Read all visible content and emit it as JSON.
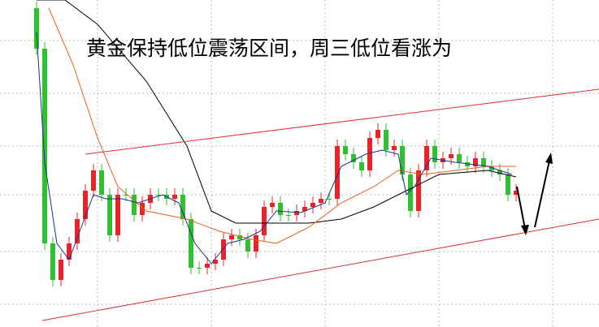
{
  "chart_data": {
    "type": "candlestick",
    "title": "黄金保持低位震荡区间，周三低位看涨为",
    "ylim": [
      0,
      403
    ],
    "up_color": "#e8242a",
    "down_color": "#2fbf2f",
    "open": [
      393,
      343,
      103,
      58,
      83,
      103,
      133,
      168,
      193,
      163,
      113,
      163,
      163,
      138,
      153,
      163,
      163,
      158,
      163,
      133,
      73,
      73,
      78,
      83,
      108,
      113,
      108,
      93,
      113,
      148,
      153,
      138,
      138,
      143,
      148,
      153,
      158,
      158,
      223,
      213,
      203,
      193,
      233,
      243,
      218,
      223,
      188,
      143,
      193,
      223,
      203,
      208,
      213,
      203,
      198,
      208,
      198,
      193,
      188,
      163
    ],
    "high": [
      401,
      351,
      111,
      91,
      111,
      141,
      176,
      201,
      201,
      171,
      171,
      171,
      171,
      161,
      171,
      171,
      171,
      171,
      171,
      141,
      81,
      86,
      91,
      116,
      121,
      121,
      116,
      121,
      156,
      161,
      161,
      146,
      151,
      156,
      161,
      166,
      166,
      231,
      231,
      221,
      211,
      241,
      251,
      251,
      231,
      231,
      196,
      201,
      231,
      231,
      216,
      221,
      221,
      211,
      216,
      216,
      206,
      201,
      196,
      176
    ],
    "low": [
      335,
      95,
      50,
      50,
      75,
      95,
      125,
      160,
      155,
      105,
      105,
      155,
      130,
      130,
      145,
      155,
      150,
      150,
      125,
      65,
      65,
      65,
      70,
      75,
      100,
      100,
      85,
      85,
      105,
      140,
      130,
      130,
      130,
      135,
      140,
      145,
      150,
      150,
      205,
      195,
      185,
      185,
      225,
      210,
      210,
      180,
      135,
      135,
      185,
      195,
      195,
      200,
      195,
      190,
      190,
      190,
      185,
      180,
      155,
      155
    ],
    "close": [
      343,
      103,
      58,
      83,
      103,
      133,
      168,
      193,
      163,
      113,
      163,
      163,
      138,
      153,
      163,
      163,
      158,
      163,
      133,
      73,
      73,
      78,
      83,
      108,
      113,
      108,
      93,
      113,
      148,
      153,
      138,
      138,
      143,
      148,
      153,
      158,
      158,
      223,
      213,
      203,
      193,
      233,
      243,
      218,
      223,
      188,
      143,
      193,
      223,
      203,
      208,
      213,
      203,
      198,
      208,
      198,
      193,
      188,
      163,
      168
    ],
    "lines": [
      {
        "color": "#000000",
        "x": [
          0,
          3.5,
          7.5,
          13.5,
          18.5,
          21.5,
          24.5,
          28.5,
          33.5,
          37.5,
          41.5,
          45.5,
          49.5,
          55.5,
          59
        ],
        "values": [
          403,
          403,
          373,
          303,
          223,
          143,
          128,
          128,
          128,
          133,
          148,
          168,
          188,
          193,
          185
        ]
      },
      {
        "color": "#e8601c",
        "x": [
          1.5,
          4.5,
          7.5,
          10,
          13.5,
          18.5,
          22.5,
          26.5,
          29.5,
          33.5,
          37.5,
          41.5,
          44.5,
          47.5,
          51.5,
          55.5,
          59
        ],
        "values": [
          393,
          323,
          233,
          173,
          143,
          133,
          118,
          108,
          103,
          123,
          153,
          173,
          193,
          188,
          193,
          198,
          198
        ]
      },
      {
        "color": "#1c2f8c",
        "x": [
          0,
          1,
          2.5,
          4,
          5.5,
          7,
          8.5,
          10.5,
          12.5,
          15.5,
          17.5,
          19.5,
          21.5,
          23.5,
          25.5,
          27.5,
          29.5,
          32.5,
          35.5,
          37.5,
          40.5,
          42.5,
          44.5,
          45.5,
          46.5,
          48.5,
          51.5,
          55.5,
          58.5
        ],
        "values": [
          363,
          203,
          103,
          83,
          123,
          163,
          158,
          158,
          153,
          163,
          153,
          103,
          78,
          103,
          108,
          118,
          143,
          141,
          153,
          198,
          213,
          218,
          213,
          163,
          173,
          208,
          203,
          198,
          188
        ]
      }
    ]
  }
}
